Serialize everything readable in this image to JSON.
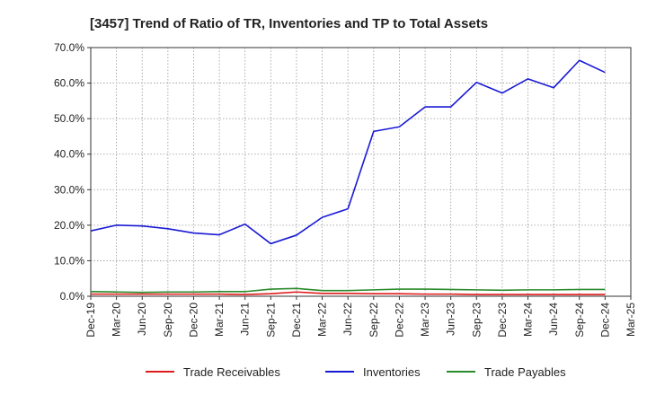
{
  "chart_data": {
    "type": "line",
    "title": "[3457]  Trend of Ratio of TR, Inventories and TP to Total Assets",
    "xlabel": "",
    "ylabel": "",
    "ylim": [
      0,
      0.7
    ],
    "y_ticks": [
      0,
      0.1,
      0.2,
      0.3,
      0.4,
      0.5,
      0.6,
      0.7
    ],
    "y_tick_labels": [
      "0.0%",
      "10.0%",
      "20.0%",
      "30.0%",
      "40.0%",
      "50.0%",
      "60.0%",
      "70.0%"
    ],
    "categories": [
      "Dec-19",
      "Mar-20",
      "Jun-20",
      "Sep-20",
      "Dec-20",
      "Mar-21",
      "Jun-21",
      "Sep-21",
      "Dec-21",
      "Mar-22",
      "Jun-22",
      "Sep-22",
      "Dec-22",
      "Mar-23",
      "Jun-23",
      "Sep-23",
      "Dec-23",
      "Mar-24",
      "Jun-24",
      "Sep-24",
      "Dec-24",
      "Mar-25"
    ],
    "grid": true,
    "legend_position": "bottom",
    "series": [
      {
        "name": "Trade Receivables",
        "color": "#e01b1b",
        "values": [
          0.006,
          0.006,
          0.006,
          0.006,
          0.006,
          0.006,
          0.005,
          0.007,
          0.012,
          0.008,
          0.008,
          0.007,
          0.007,
          0.006,
          0.006,
          0.005,
          0.005,
          0.005,
          0.005,
          0.005,
          0.005,
          null
        ]
      },
      {
        "name": "Inventories",
        "color": "#1a1ad6",
        "values": [
          0.184,
          0.2,
          0.198,
          0.19,
          0.178,
          0.173,
          0.203,
          0.148,
          0.172,
          0.222,
          0.246,
          0.464,
          0.477,
          0.533,
          0.533,
          0.602,
          0.572,
          0.612,
          0.587,
          0.664,
          0.63,
          null
        ]
      },
      {
        "name": "Trade Payables",
        "color": "#2a8a2a",
        "values": [
          0.013,
          0.012,
          0.011,
          0.012,
          0.012,
          0.013,
          0.013,
          0.02,
          0.022,
          0.016,
          0.016,
          0.018,
          0.02,
          0.02,
          0.019,
          0.018,
          0.017,
          0.018,
          0.018,
          0.019,
          0.019,
          null
        ]
      }
    ]
  }
}
